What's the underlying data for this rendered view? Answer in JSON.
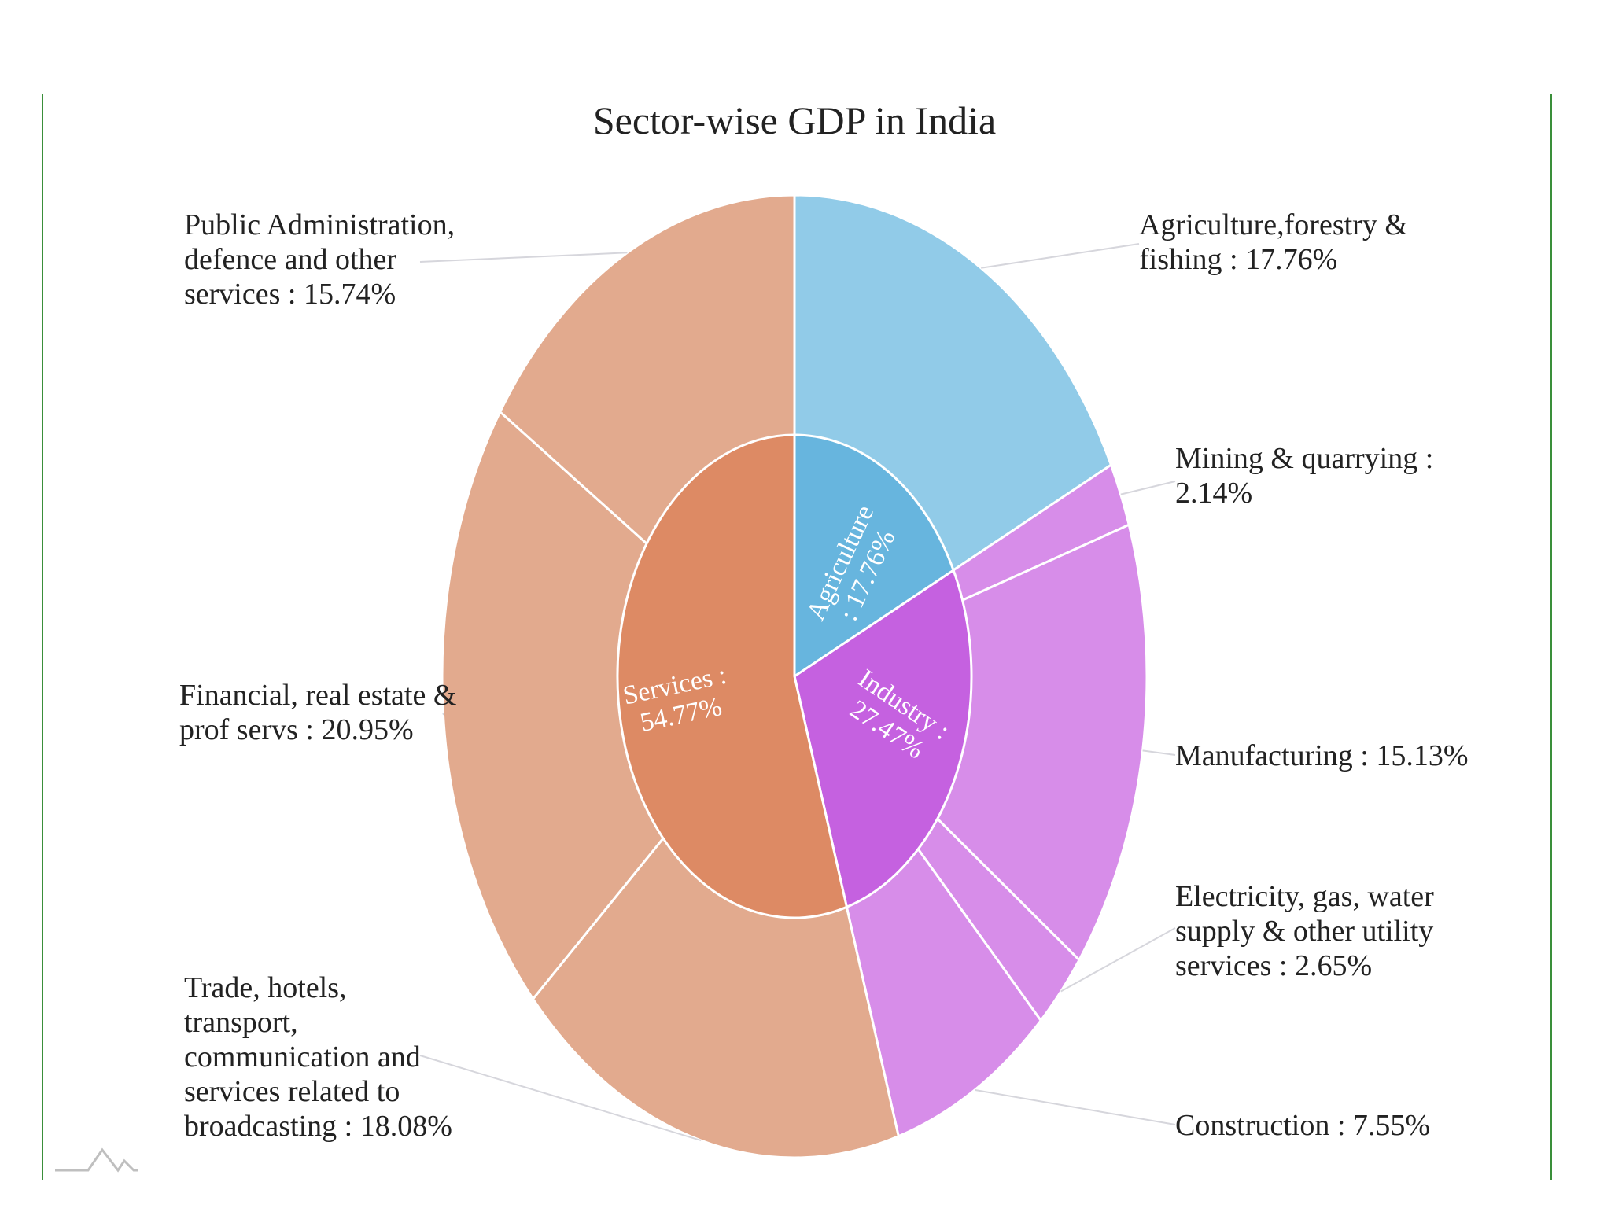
{
  "chart_data": {
    "type": "sunburst",
    "title": "Sector-wise GDP in India",
    "unit": "%",
    "colors": {
      "agriculture_inner": "#67b5de",
      "agriculture_outer": "#91cbe8",
      "industry_inner": "#c561e0",
      "industry_outer": "#d78de9",
      "services_inner": "#dd8a64",
      "services_outer": "#e2aa8e",
      "stroke": "#ffffff"
    },
    "sectors": [
      {
        "name": "Agriculture",
        "value": 17.76,
        "label_lines": [
          "Agriculture",
          ": 17.76%"
        ],
        "color_key": "agriculture",
        "children": [
          {
            "name": "Agriculture,forestry & fishing",
            "value": 17.76,
            "label_lines": [
              "Agriculture,forestry &",
              "fishing : 17.76%"
            ]
          }
        ]
      },
      {
        "name": "Industry",
        "value": 27.47,
        "label_lines": [
          "Industry :",
          "27.47%"
        ],
        "color_key": "industry",
        "children": [
          {
            "name": "Mining & quarrying",
            "value": 2.14,
            "label_lines": [
              "Mining & quarrying :",
              "2.14%"
            ]
          },
          {
            "name": "Manufacturing",
            "value": 15.13,
            "label_lines": [
              "Manufacturing : 15.13%"
            ]
          },
          {
            "name": "Electricity, gas, water supply & other utility services",
            "value": 2.65,
            "label_lines": [
              "Electricity, gas, water",
              "supply & other utility",
              "services : 2.65%"
            ]
          },
          {
            "name": "Construction",
            "value": 7.55,
            "label_lines": [
              "Construction : 7.55%"
            ]
          }
        ]
      },
      {
        "name": "Services",
        "value": 54.77,
        "label_lines": [
          "Services :",
          "54.77%"
        ],
        "color_key": "services",
        "children": [
          {
            "name": "Trade, hotels, transport, communication and services related to broadcasting",
            "value": 18.08,
            "label_lines": [
              "Trade, hotels,",
              "transport,",
              "communication and",
              "services related to",
              "broadcasting : 18.08%"
            ]
          },
          {
            "name": "Financial, real estate & prof servs",
            "value": 20.95,
            "label_lines": [
              "Financial, real estate &",
              "prof servs : 20.95%"
            ]
          },
          {
            "name": "Public Administration, defence and other services",
            "value": 15.74,
            "label_lines": [
              "Public Administration,",
              "defence and other",
              "services : 15.74%"
            ]
          }
        ]
      }
    ]
  },
  "logo": {
    "icon": "mountain-logo-icon"
  }
}
